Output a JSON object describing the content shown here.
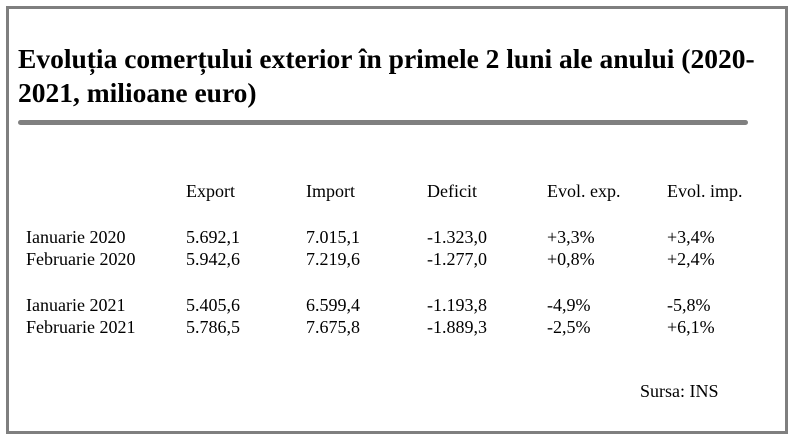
{
  "title": "Evoluția comerțului exterior în primele 2 luni ale anului (2020-2021, milioane euro)",
  "table": {
    "headers": [
      "Export",
      "Import",
      "Deficit",
      "Evol. exp.",
      "Evol. imp."
    ],
    "rows": [
      {
        "label": "Ianuarie 2020",
        "export": "5.692,1",
        "import": "7.015,1",
        "deficit": "-1.323,0",
        "evol_exp": "+3,3%",
        "evol_imp": "+3,4%"
      },
      {
        "label": "Februarie 2020",
        "export": "5.942,6",
        "import": "7.219,6",
        "deficit": "-1.277,0",
        "evol_exp": "+0,8%",
        "evol_imp": "+2,4%"
      },
      {
        "label": "Ianuarie 2021",
        "export": "5.405,6",
        "import": "6.599,4",
        "deficit": "-1.193,8",
        "evol_exp": "-4,9%",
        "evol_imp": "-5,8%"
      },
      {
        "label": "Februarie 2021",
        "export": "5.786,5",
        "import": "7.675,8",
        "deficit": "-1.889,3",
        "evol_exp": "-2,5%",
        "evol_imp": "+6,1%"
      }
    ]
  },
  "source": "Sursa: INS"
}
